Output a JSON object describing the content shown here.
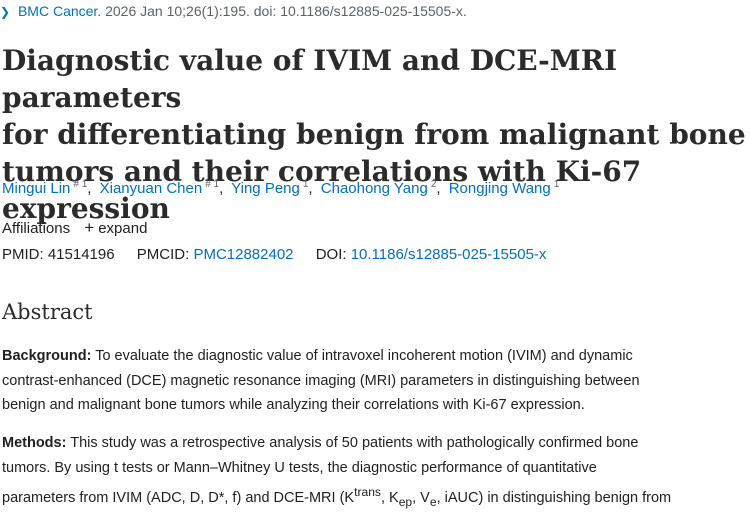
{
  "citation": {
    "journal": "BMC Cancer.",
    "details": "2026 Jan 10;26(1):195. doi: 10.1186/s12885-025-15505-x."
  },
  "article": {
    "title_lines": [
      "Diagnostic value of IVIM and DCE-MRI parameters",
      "for differentiating benign from malignant bone",
      "tumors and their correlations with Ki-67 expression"
    ]
  },
  "authors": [
    {
      "name": "Mingui Lin",
      "sup": "# 1"
    },
    {
      "name": "Xianyuan Chen",
      "sup": "# 1"
    },
    {
      "name": "Ying Peng",
      "sup": "1"
    },
    {
      "name": "Chaohong Yang",
      "sup": "2"
    },
    {
      "name": "Rongjing Wang",
      "sup": "1"
    }
  ],
  "affiliations": {
    "label": "Affiliations",
    "expand": "expand"
  },
  "identifiers": {
    "pmid_label": "PMID:",
    "pmid": "41514196",
    "pmcid_label": "PMCID:",
    "pmcid": "PMC12882402",
    "doi_label": "DOI:",
    "doi": "10.1186/s12885-025-15505-x"
  },
  "abstract": {
    "heading": "Abstract",
    "background_label": "Background:",
    "background_lines": [
      "To evaluate the diagnostic value of intravoxel incoherent motion (IVIM) and dynamic",
      "contrast-enhanced (DCE) magnetic resonance imaging (MRI) parameters in distinguishing between",
      "benign and malignant bone tumors while analyzing their correlations with Ki-67 expression."
    ],
    "methods_label": "Methods:",
    "methods_line1": "This study was a retrospective analysis of 50 patients with pathologically confirmed bone",
    "methods_line2": "tumors. By using t tests or Mann–Whitney U tests, the diagnostic performance of quantitative",
    "methods_line3_parts": {
      "pre": "parameters from IVIM (ADC, D, D*, f) and DCE-MRI (K",
      "ktrans_sup": "trans",
      "comma1": ", K",
      "kep_sub": "ep",
      "comma2": ", V",
      "ve_sub": "e",
      "post": ", iAUC) in distinguishing benign from"
    }
  }
}
